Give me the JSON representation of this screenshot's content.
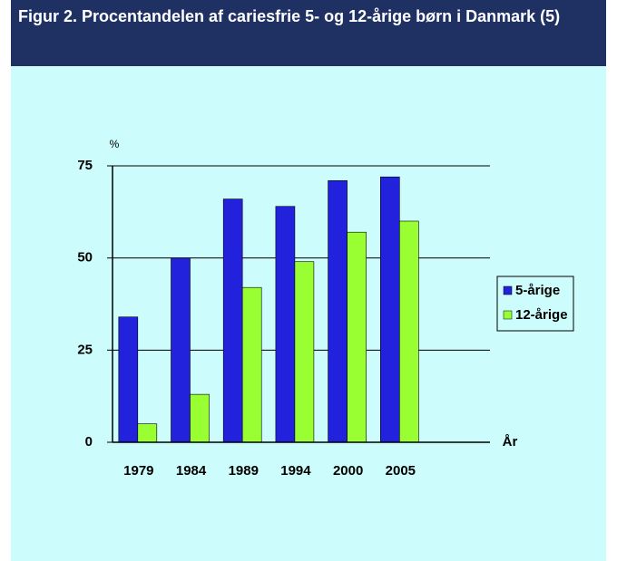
{
  "chart_data": {
    "type": "bar",
    "title": "Figur 2. Procentandelen af cariesfrie 5- og 12-årige børn i Danmark (5)",
    "y_label": "%",
    "x_label": "År",
    "categories": [
      "1979",
      "1984",
      "1989",
      "1994",
      "2000",
      "2005"
    ],
    "series": [
      {
        "name": "5-årige",
        "color": "#2222dd",
        "values": [
          34,
          50,
          66,
          64,
          71,
          72
        ]
      },
      {
        "name": "12-årige",
        "color": "#99ff33",
        "values": [
          5,
          13,
          42,
          49,
          57,
          60
        ]
      }
    ],
    "ylim": [
      0,
      75
    ],
    "yticks": [
      0,
      25,
      50,
      75
    ],
    "grid": true,
    "legend": "right"
  }
}
